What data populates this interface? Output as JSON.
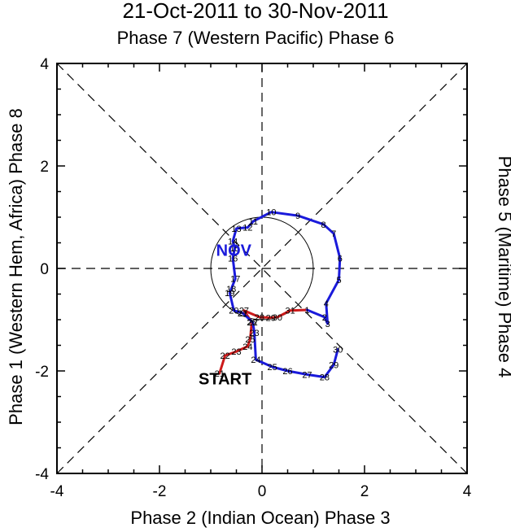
{
  "chart_data": {
    "type": "line",
    "title": "21-Oct-2011 to 30-Nov-2011",
    "subtitle": "Phase 7 (Western Pacific) Phase 6",
    "xlabel": "Phase 2 (Indian Ocean) Phase 3",
    "ylabel_left": "Phase 1 (Western Hem, Africa) Phase 8",
    "ylabel_right": "Phase 5 (Maritime) Phase 4",
    "xlim": [
      -4,
      4
    ],
    "ylim": [
      -4,
      4
    ],
    "x_ticks": [
      "-4",
      "-2",
      "0",
      "2",
      "4"
    ],
    "y_ticks": [
      "-4",
      "-2",
      "0",
      "2",
      "4"
    ],
    "unit_circle_radius": 1,
    "annotations": [
      {
        "text": "START",
        "x": -0.72,
        "y": -2.15,
        "color": "#000000"
      },
      {
        "text": "NOV",
        "x": -0.55,
        "y": 0.36,
        "color": "#1a1adb"
      }
    ],
    "series": [
      {
        "name": "October",
        "color": "#cc1a1a",
        "points": [
          {
            "label": "21",
            "x": -0.83,
            "y": -2.05
          },
          {
            "label": "22",
            "x": -0.72,
            "y": -1.7
          },
          {
            "label": "23",
            "x": -0.5,
            "y": -1.62
          },
          {
            "label": "24",
            "x": -0.28,
            "y": -1.52
          },
          {
            "label": "25",
            "x": -0.23,
            "y": -1.38
          },
          {
            "label": "26",
            "x": -0.2,
            "y": -1.05
          },
          {
            "label": "27",
            "x": -0.35,
            "y": -0.82
          },
          {
            "label": "28",
            "x": -0.05,
            "y": -0.95
          },
          {
            "label": "29",
            "x": 0.17,
            "y": -0.96
          },
          {
            "label": "30",
            "x": 0.3,
            "y": -0.95
          },
          {
            "label": "31",
            "x": 0.55,
            "y": -0.82
          }
        ]
      },
      {
        "name": "November",
        "color": "#1a1adb",
        "points": [
          {
            "label": "1",
            "x": 0.88,
            "y": -0.81
          },
          {
            "label": "2",
            "x": 1.22,
            "y": -0.95
          },
          {
            "label": "3",
            "x": 1.28,
            "y": -1.08
          },
          {
            "label": "4",
            "x": 1.25,
            "y": -0.68
          },
          {
            "label": "5",
            "x": 1.5,
            "y": -0.22
          },
          {
            "label": "6",
            "x": 1.52,
            "y": 0.2
          },
          {
            "label": "7",
            "x": 1.4,
            "y": 0.68
          },
          {
            "label": "8",
            "x": 1.2,
            "y": 0.86
          },
          {
            "label": "9",
            "x": 0.7,
            "y": 1.03
          },
          {
            "label": "10",
            "x": 0.18,
            "y": 1.1
          },
          {
            "label": "11",
            "x": -0.17,
            "y": 0.92
          },
          {
            "label": "12",
            "x": -0.28,
            "y": 0.8
          },
          {
            "label": "13",
            "x": -0.5,
            "y": 0.78
          },
          {
            "label": "14",
            "x": -0.57,
            "y": 0.53
          },
          {
            "label": "15",
            "x": -0.53,
            "y": 0.4
          },
          {
            "label": "16",
            "x": -0.57,
            "y": 0.2
          },
          {
            "label": "17",
            "x": -0.52,
            "y": -0.2
          },
          {
            "label": "18",
            "x": -0.6,
            "y": -0.4
          },
          {
            "label": "19",
            "x": -0.63,
            "y": -0.48
          },
          {
            "label": "20",
            "x": -0.55,
            "y": -0.82
          },
          {
            "label": "21",
            "x": -0.38,
            "y": -0.87
          },
          {
            "label": "22",
            "x": -0.18,
            "y": -1.05
          },
          {
            "label": "23",
            "x": -0.15,
            "y": -1.25
          },
          {
            "label": "24",
            "x": -0.12,
            "y": -1.78
          },
          {
            "label": "25",
            "x": 0.2,
            "y": -1.92
          },
          {
            "label": "26",
            "x": 0.5,
            "y": -2.0
          },
          {
            "label": "27",
            "x": 0.88,
            "y": -2.07
          },
          {
            "label": "28",
            "x": 1.22,
            "y": -2.12
          },
          {
            "label": "29",
            "x": 1.4,
            "y": -1.88
          },
          {
            "label": "30",
            "x": 1.48,
            "y": -1.58
          }
        ]
      }
    ]
  }
}
